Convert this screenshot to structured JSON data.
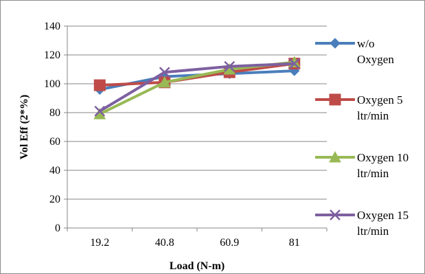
{
  "chart_data": {
    "type": "line",
    "title": "",
    "xlabel": "Load (N-m)",
    "ylabel": "Vol Eff (2*%)",
    "categories": [
      "19.2",
      "40.8",
      "60.9",
      "81"
    ],
    "ylim": [
      0,
      140
    ],
    "yticks": [
      0,
      20,
      40,
      60,
      80,
      100,
      120,
      140
    ],
    "grid": true,
    "legend_position": "right",
    "series": [
      {
        "name": "w/o Oxygen",
        "legend_lines": [
          "w/o",
          "Oxygen"
        ],
        "marker": "diamond",
        "color": "#4a7ebb",
        "values": [
          96,
          105,
          107,
          109
        ]
      },
      {
        "name": "Oxygen 5 ltr/min",
        "legend_lines": [
          "Oxygen 5",
          "ltr/min"
        ],
        "marker": "square",
        "color": "#be4b48",
        "values": [
          99,
          101,
          108,
          114
        ]
      },
      {
        "name": "Oxygen 10 ltr/min",
        "legend_lines": [
          "Oxygen 10",
          "ltr/min"
        ],
        "marker": "triangle",
        "color": "#98b954",
        "values": [
          79,
          101,
          110,
          115
        ]
      },
      {
        "name": "Oxygen 15 ltr/min",
        "legend_lines": [
          "Oxygen 15",
          "ltr/min"
        ],
        "marker": "x",
        "color": "#7d60a0",
        "values": [
          81,
          108,
          112,
          114
        ]
      }
    ]
  }
}
